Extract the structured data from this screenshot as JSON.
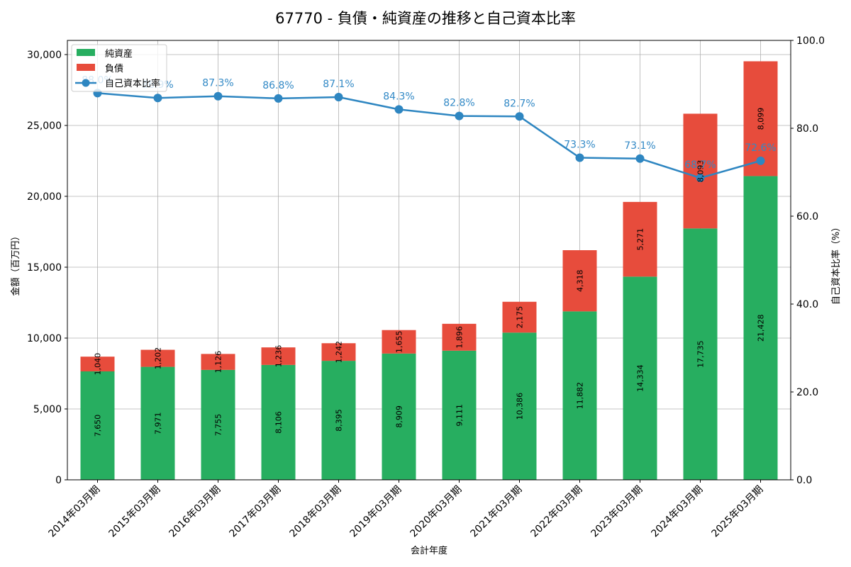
{
  "chart_data": {
    "type": "bar",
    "stacked": true,
    "title": "67770 - 負債・純資産の推移と自己資本比率",
    "xlabel": "会計年度",
    "ylabel": "金額（百万円）",
    "y2label": "自己資本比率（%）",
    "categories": [
      "2014年03月期",
      "2015年03月期",
      "2016年03月期",
      "2017年03月期",
      "2018年03月期",
      "2019年03月期",
      "2020年03月期",
      "2021年03月期",
      "2022年03月期",
      "2023年03月期",
      "2024年03月期",
      "2025年03月期"
    ],
    "series": [
      {
        "name": "純資産",
        "type": "bar",
        "color": "#27ae60",
        "values": [
          7650,
          7971,
          7755,
          8106,
          8395,
          8909,
          9111,
          10386,
          11882,
          14334,
          17735,
          21428
        ],
        "labels": [
          "7,650",
          "7,971",
          "7,755",
          "8,106",
          "8,395",
          "8,909",
          "9,111",
          "10,386",
          "11,882",
          "14,334",
          "17,735",
          "21,428"
        ]
      },
      {
        "name": "負債",
        "type": "bar",
        "color": "#e74c3c",
        "values": [
          1040,
          1202,
          1126,
          1236,
          1242,
          1655,
          1896,
          2175,
          4318,
          5271,
          8093,
          8099
        ],
        "labels": [
          "1,040",
          "1,202",
          "1,126",
          "1,236",
          "1,242",
          "1,655",
          "1,896",
          "2,175",
          "4,318",
          "5,271",
          "8,093",
          "8,099"
        ]
      },
      {
        "name": "自己資本比率",
        "type": "line",
        "axis": "right",
        "color": "#2e86c1",
        "values": [
          88.0,
          86.9,
          87.3,
          86.8,
          87.1,
          84.3,
          82.8,
          82.7,
          73.3,
          73.1,
          68.7,
          72.6
        ],
        "labels": [
          "88.0%",
          "86.9%",
          "87.3%",
          "86.8%",
          "87.1%",
          "84.3%",
          "82.8%",
          "82.7%",
          "73.3%",
          "73.1%",
          "68.7%",
          "72.6%"
        ]
      }
    ],
    "ylim": [
      0,
      31000
    ],
    "y2lim": [
      0,
      100
    ],
    "yticks": [
      "0",
      "5,000",
      "10,000",
      "15,000",
      "20,000",
      "25,000",
      "30,000"
    ],
    "ytick_values": [
      0,
      5000,
      10000,
      15000,
      20000,
      25000,
      30000
    ],
    "y2ticks": [
      "0.0",
      "20.0",
      "40.0",
      "60.0",
      "80.0",
      "100.0"
    ],
    "y2tick_values": [
      0,
      20,
      40,
      60,
      80,
      100
    ],
    "grid": true,
    "legend": "top-left"
  }
}
